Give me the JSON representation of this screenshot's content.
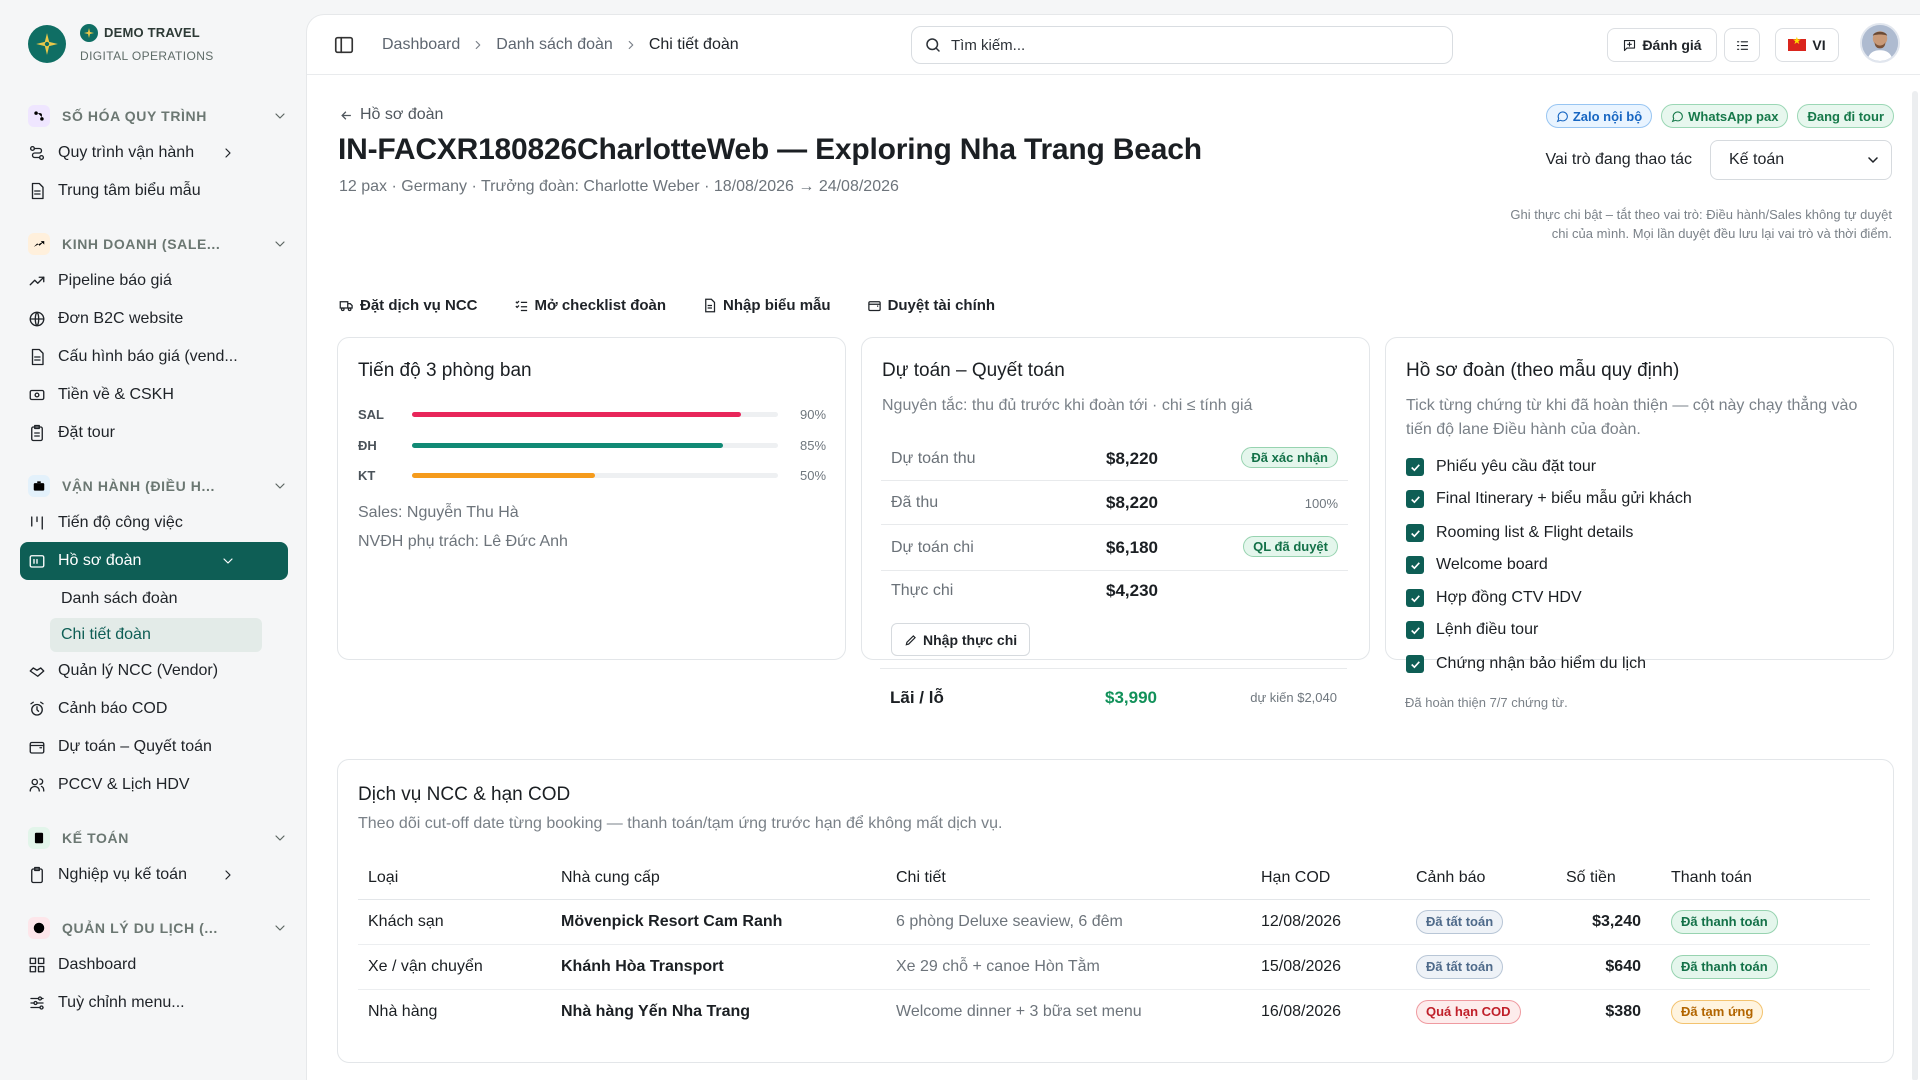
{
  "brand": {
    "name": "DEMO TRAVEL",
    "subtitle": "DIGITAL OPERATIONS"
  },
  "sidebar": {
    "sections": [
      {
        "title": "SỐ HÓA QUY TRÌNH",
        "items": [
          "Quy trình vận hành",
          "Trung tâm biểu mẫu"
        ]
      },
      {
        "title": "KINH DOANH (SALE...",
        "items": [
          "Pipeline báo giá",
          "Đơn B2C website",
          "Cấu hình báo giá (vend...",
          "Tiền về & CSKH",
          "Đặt tour"
        ]
      },
      {
        "title": "VẬN HÀNH (ĐIỀU H...",
        "items": [
          "Tiến độ công việc",
          "Hồ sơ đoàn",
          "Danh sách đoàn",
          "Chi tiết đoàn",
          "Quản lý NCC (Vendor)",
          "Cảnh báo COD",
          "Dự toán – Quyết toán",
          "PCCV & Lịch HDV"
        ]
      },
      {
        "title": "KẾ TOÁN",
        "items": [
          "Nghiệp vụ kế toán"
        ]
      },
      {
        "title": "QUẢN LÝ DU LỊCH (...",
        "items": [
          "Dashboard",
          "Tuỳ chỉnh menu..."
        ]
      }
    ]
  },
  "topbar": {
    "breadcrumbs": [
      "Dashboard",
      "Danh sách đoàn",
      "Chi tiết đoàn"
    ],
    "search_placeholder": "Tìm kiếm...",
    "review_label": "Đánh giá",
    "lang_label": "VI"
  },
  "header": {
    "back_label": "Hồ sơ đoàn",
    "title": "IN-FACXR180826CharlotteWeb — Exploring Nha Trang Beach",
    "meta": "12 pax · Germany · Trưởng đoàn: Charlotte Weber · 18/08/2026 → 24/08/2026",
    "chips": [
      "Zalo nội bộ",
      "WhatsApp pax",
      "Đang đi tour"
    ],
    "role_label": "Vai trò đang thao tác",
    "role_value": "Kế toán",
    "role_note": "Ghi thực chi bật – tắt theo vai trò: Điều hành/Sales không tự duyệt chi của mình. Mọi lần duyệt đều lưu lại vai trò và thời điểm."
  },
  "actions": [
    "Đặt dịch vụ NCC",
    "Mở checklist đoàn",
    "Nhập biểu mẫu",
    "Duyệt tài chính"
  ],
  "progress": {
    "title": "Tiến độ 3 phòng ban",
    "rows": [
      {
        "label": "SAL",
        "value": 90,
        "display": "90%",
        "color": "#e8265a"
      },
      {
        "label": "ĐH",
        "value": 85,
        "display": "85%",
        "color": "#118a75"
      },
      {
        "label": "KT",
        "value": 50,
        "display": "50%",
        "color": "#f59b1c"
      }
    ],
    "sales": "Sales: Nguyễn Thu Hà",
    "nvdh": "NVĐH phụ trách: Lê Đức Anh"
  },
  "budget": {
    "title": "Dự toán – Quyết toán",
    "subtitle": "Nguyên tắc: thu đủ trước khi đoàn tới · chi ≤ tính giá",
    "rows": [
      {
        "label": "Dự toán thu",
        "value": "$8,220",
        "badge": "Đã xác nhận"
      },
      {
        "label": "Đã thu",
        "value": "$8,220",
        "note": "100%"
      },
      {
        "label": "Dự toán chi",
        "value": "$6,180",
        "badge": "QL đã duyệt"
      },
      {
        "label": "Thực chi",
        "value": "$4,230"
      }
    ],
    "button": "Nhập thực chi",
    "profit_label": "Lãi / lỗ",
    "profit_value": "$3,990",
    "profit_note": "dự kiến $2,040"
  },
  "dossier": {
    "title": "Hồ sơ đoàn (theo mẫu quy định)",
    "subtitle": "Tick từng chứng từ khi đã hoàn thiện — cột này chạy thẳng vào tiến độ lane Điều hành của đoàn.",
    "items": [
      "Phiếu yêu cầu đặt tour",
      "Final Itinerary + biểu mẫu gửi khách",
      "Rooming list & Flight details",
      "Welcome board",
      "Hợp đồng CTV HDV",
      "Lệnh điều tour",
      "Chứng nhận bảo hiểm du lịch"
    ],
    "footer": "Đã hoàn thiện 7/7 chứng từ."
  },
  "vendors": {
    "title": "Dịch vụ NCC & hạn COD",
    "subtitle": "Theo dõi cut-off date từng booking — thanh toán/tạm ứng trước hạn để không mất dịch vụ.",
    "columns": [
      "Loại",
      "Nhà cung cấp",
      "Chi tiết",
      "Hạn COD",
      "Cảnh báo",
      "Số tiền",
      "Thanh toán"
    ],
    "rows": [
      {
        "type": "Khách sạn",
        "supplier": "Mövenpick Resort Cam Ranh",
        "detail": "6 phòng Deluxe seaview, 6 đêm",
        "cod": "12/08/2026",
        "alert": "Đã tất toán",
        "alert_kind": "gray",
        "amount": "$3,240",
        "payment": "Đã thanh toán",
        "payment_kind": "green"
      },
      {
        "type": "Xe / vận chuyển",
        "supplier": "Khánh Hòa Transport",
        "detail": "Xe 29 chỗ + canoe Hòn Tằm",
        "cod": "15/08/2026",
        "alert": "Đã tất toán",
        "alert_kind": "gray",
        "amount": "$640",
        "payment": "Đã thanh toán",
        "payment_kind": "green"
      },
      {
        "type": "Nhà hàng",
        "supplier": "Nhà hàng Yến Nha Trang",
        "detail": "Welcome dinner + 3 bữa set menu",
        "cod": "16/08/2026",
        "alert": "Quá hạn COD",
        "alert_kind": "red",
        "amount": "$380",
        "payment": "Đã tạm ứng",
        "payment_kind": "amber"
      }
    ]
  },
  "colors": {
    "primary": "#0e5e55",
    "profit": "#12915a"
  }
}
